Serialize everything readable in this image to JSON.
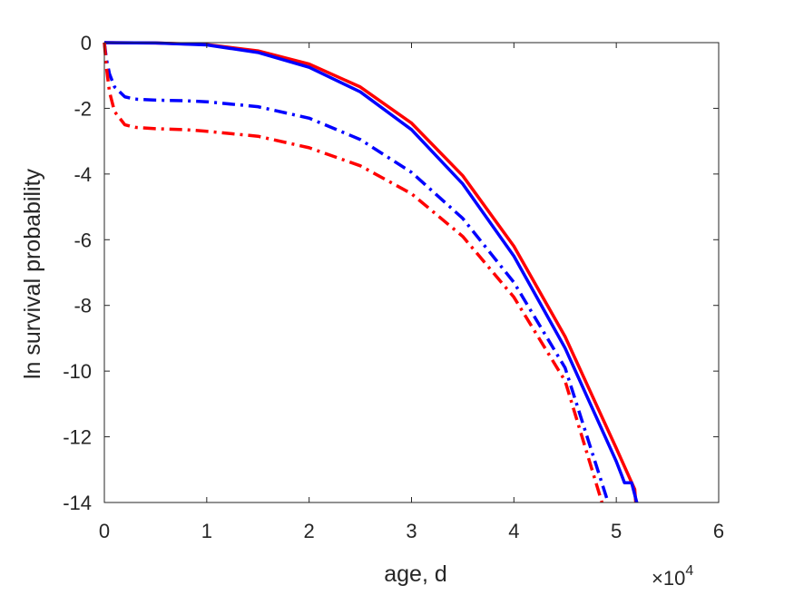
{
  "chart_data": {
    "type": "line",
    "xlabel": "age, d",
    "ylabel": "ln survival probability",
    "x_multiplier_text": "×10",
    "x_multiplier_exp": "4",
    "xlim": [
      0,
      60000
    ],
    "ylim": [
      -14,
      0
    ],
    "xticks": [
      0,
      10000,
      20000,
      30000,
      40000,
      50000,
      60000
    ],
    "xtick_labels": [
      "0",
      "1",
      "2",
      "3",
      "4",
      "5",
      "6"
    ],
    "yticks": [
      0,
      -2,
      -4,
      -6,
      -8,
      -10,
      -12,
      -14
    ],
    "ytick_labels": [
      "0",
      "-2",
      "-4",
      "-6",
      "-8",
      "-10",
      "-12",
      "-14"
    ],
    "grid": false,
    "series": [
      {
        "color": "#ff0000",
        "style": "solid",
        "x": [
          0,
          5000,
          10000,
          15000,
          20000,
          25000,
          30000,
          35000,
          40000,
          45000,
          50000,
          51800,
          51900
        ],
        "y": [
          0,
          -0.01,
          -0.06,
          -0.25,
          -0.65,
          -1.35,
          -2.45,
          -4.05,
          -6.2,
          -8.95,
          -12.35,
          -13.6,
          -14
        ]
      },
      {
        "color": "#0000ff",
        "style": "solid",
        "x": [
          0,
          5000,
          10000,
          15000,
          20000,
          25000,
          30000,
          35000,
          40000,
          45000,
          50000,
          50500,
          50800,
          51500,
          52000
        ],
        "y": [
          0,
          -0.01,
          -0.07,
          -0.3,
          -0.75,
          -1.5,
          -2.65,
          -4.3,
          -6.5,
          -9.3,
          -12.75,
          -13.15,
          -13.4,
          -13.4,
          -14
        ]
      },
      {
        "color": "#0000ff",
        "style": "dashdot",
        "x": [
          0,
          200,
          500,
          1000,
          2000,
          3000,
          5000,
          8000,
          10000,
          15000,
          20000,
          25000,
          30000,
          35000,
          40000,
          45000,
          49200
        ],
        "y": [
          0,
          -0.5,
          -0.95,
          -1.35,
          -1.65,
          -1.72,
          -1.75,
          -1.77,
          -1.8,
          -1.95,
          -2.3,
          -2.95,
          -3.95,
          -5.35,
          -7.3,
          -9.9,
          -14
        ]
      },
      {
        "color": "#ff0000",
        "style": "dashdot",
        "x": [
          0,
          200,
          500,
          1000,
          2000,
          3000,
          5000,
          8000,
          10000,
          15000,
          20000,
          25000,
          30000,
          35000,
          40000,
          45000,
          48600
        ],
        "y": [
          0,
          -0.75,
          -1.5,
          -2.1,
          -2.5,
          -2.58,
          -2.62,
          -2.65,
          -2.7,
          -2.85,
          -3.2,
          -3.75,
          -4.6,
          -5.9,
          -7.75,
          -10.3,
          -14
        ]
      }
    ]
  }
}
